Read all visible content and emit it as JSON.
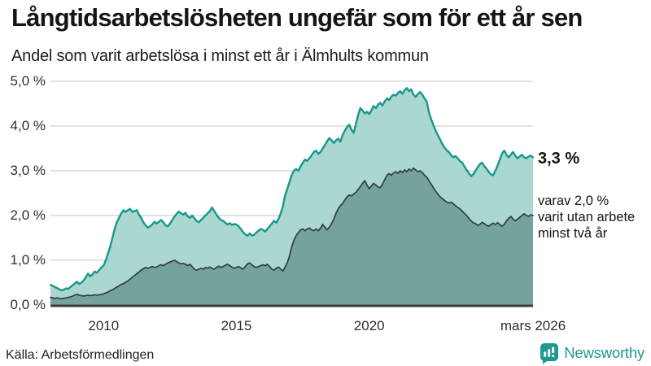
{
  "title": "Långtidsarbetslösheten ungefär som för ett år sen",
  "subtitle": "Andel som varit arbetslösa i minst ett år i Älmhults kommun",
  "source": "Källa: Arbetsförmedlingen",
  "branding": {
    "name": "Newsworthy",
    "color": "#1d9990"
  },
  "annotations": {
    "latest_value": "3,3 %",
    "secondary": "varav 2,0 %\nvarit utan arbete\nminst två år"
  },
  "colors": {
    "background": "#ffffff",
    "grid": "#d9d9d9",
    "baseline": "#3b3b3b",
    "text": "#151515",
    "tick_text": "#2e2e2e",
    "line_1yr": "#17978b",
    "fill_1yr": "#a4d4cd",
    "line_2yr": "#333d3c",
    "fill_2yr": "#6f9e97"
  },
  "chart_data": {
    "type": "area",
    "title": "Långtidsarbetslösheten ungefär som för ett år sen",
    "subtitle": "Andel som varit arbetslösa i minst ett år i Älmhults kommun",
    "unit": "%",
    "legend": "none",
    "grid": true,
    "x_range": [
      2008.0,
      2026.1667
    ],
    "y_range": [
      0,
      5
    ],
    "y_ticks": [
      {
        "v": 5,
        "label": "5,0 %"
      },
      {
        "v": 4,
        "label": "4,0 %"
      },
      {
        "v": 3,
        "label": "3,0 %"
      },
      {
        "v": 2,
        "label": "2,0 %"
      },
      {
        "v": 1,
        "label": "1,0 %"
      },
      {
        "v": 0,
        "label": "0,0 %"
      }
    ],
    "x_ticks": [
      {
        "t": 2010.0,
        "label": "2010"
      },
      {
        "t": 2015.0,
        "label": "2015"
      },
      {
        "t": 2020.0,
        "label": "2020"
      },
      {
        "t": 2026.1667,
        "label": "mars 2026"
      }
    ],
    "resolution": "monthly",
    "series": [
      {
        "id": "minst-ett-ar",
        "name": "Andel arbetslösa minst ett år",
        "start_year": 2008,
        "latest_value": 3.3,
        "line_color": "#17978b",
        "fill_color": "#a4d4cd",
        "line_width": 2.4,
        "values": [
          0.45,
          0.43,
          0.4,
          0.38,
          0.35,
          0.33,
          0.34,
          0.37,
          0.36,
          0.4,
          0.44,
          0.48,
          0.52,
          0.47,
          0.5,
          0.55,
          0.62,
          0.7,
          0.64,
          0.68,
          0.75,
          0.72,
          0.78,
          0.84,
          0.88,
          1.0,
          1.15,
          1.3,
          1.5,
          1.7,
          1.85,
          1.95,
          2.05,
          2.12,
          2.08,
          2.12,
          2.15,
          2.08,
          2.1,
          2.12,
          2.02,
          1.95,
          1.85,
          1.78,
          1.73,
          1.76,
          1.8,
          1.86,
          1.82,
          1.86,
          1.9,
          1.85,
          1.78,
          1.76,
          1.82,
          1.9,
          1.97,
          2.04,
          2.09,
          2.05,
          2.02,
          2.06,
          1.98,
          1.95,
          2.0,
          1.94,
          1.88,
          1.85,
          1.9,
          1.95,
          2.0,
          2.05,
          2.1,
          2.18,
          2.1,
          2.02,
          1.95,
          1.9,
          1.88,
          1.84,
          1.8,
          1.83,
          1.79,
          1.81,
          1.8,
          1.76,
          1.7,
          1.63,
          1.58,
          1.55,
          1.6,
          1.55,
          1.57,
          1.62,
          1.66,
          1.7,
          1.68,
          1.64,
          1.7,
          1.76,
          1.82,
          1.88,
          1.84,
          1.92,
          2.05,
          2.2,
          2.45,
          2.6,
          2.75,
          2.9,
          3.0,
          3.04,
          3.0,
          3.1,
          3.18,
          3.25,
          3.22,
          3.28,
          3.35,
          3.42,
          3.45,
          3.38,
          3.42,
          3.5,
          3.58,
          3.66,
          3.73,
          3.68,
          3.62,
          3.68,
          3.72,
          3.65,
          3.8,
          3.9,
          3.98,
          4.03,
          3.92,
          3.85,
          4.05,
          4.25,
          4.4,
          4.35,
          4.28,
          4.32,
          4.27,
          4.35,
          4.45,
          4.4,
          4.48,
          4.52,
          4.46,
          4.55,
          4.62,
          4.58,
          4.66,
          4.7,
          4.68,
          4.74,
          4.78,
          4.72,
          4.8,
          4.85,
          4.78,
          4.82,
          4.7,
          4.65,
          4.72,
          4.76,
          4.7,
          4.62,
          4.55,
          4.3,
          4.15,
          4.02,
          3.9,
          3.8,
          3.7,
          3.6,
          3.52,
          3.46,
          3.42,
          3.35,
          3.3,
          3.33,
          3.28,
          3.22,
          3.18,
          3.1,
          3.02,
          2.95,
          2.88,
          2.92,
          3.0,
          3.08,
          3.15,
          3.18,
          3.1,
          3.05,
          2.97,
          2.92,
          2.9,
          3.0,
          3.12,
          3.25,
          3.38,
          3.45,
          3.36,
          3.3,
          3.36,
          3.42,
          3.34,
          3.28,
          3.32,
          3.36,
          3.3,
          3.28,
          3.32,
          3.34,
          3.3
        ]
      },
      {
        "id": "minst-tva-ar",
        "name": "varav utan arbete minst två år",
        "start_year": 2008,
        "latest_value": 2.0,
        "line_color": "#333d3c",
        "fill_color": "#6f9e97",
        "line_width": 1.7,
        "values": [
          0.17,
          0.16,
          0.15,
          0.16,
          0.15,
          0.14,
          0.15,
          0.16,
          0.17,
          0.18,
          0.2,
          0.22,
          0.24,
          0.22,
          0.21,
          0.2,
          0.21,
          0.22,
          0.21,
          0.22,
          0.23,
          0.22,
          0.23,
          0.24,
          0.25,
          0.27,
          0.29,
          0.32,
          0.34,
          0.37,
          0.4,
          0.43,
          0.46,
          0.48,
          0.51,
          0.54,
          0.58,
          0.62,
          0.66,
          0.7,
          0.74,
          0.78,
          0.81,
          0.84,
          0.82,
          0.84,
          0.86,
          0.84,
          0.85,
          0.88,
          0.9,
          0.88,
          0.91,
          0.94,
          0.96,
          0.98,
          1.0,
          0.97,
          0.94,
          0.92,
          0.93,
          0.91,
          0.88,
          0.91,
          0.86,
          0.8,
          0.78,
          0.8,
          0.82,
          0.8,
          0.84,
          0.82,
          0.85,
          0.82,
          0.8,
          0.84,
          0.87,
          0.84,
          0.86,
          0.89,
          0.91,
          0.88,
          0.85,
          0.82,
          0.84,
          0.86,
          0.83,
          0.8,
          0.86,
          0.92,
          0.94,
          0.9,
          0.86,
          0.84,
          0.86,
          0.88,
          0.9,
          0.88,
          0.91,
          0.86,
          0.8,
          0.78,
          0.82,
          0.85,
          0.8,
          0.76,
          0.85,
          0.95,
          1.1,
          1.3,
          1.45,
          1.55,
          1.62,
          1.68,
          1.7,
          1.66,
          1.7,
          1.72,
          1.68,
          1.66,
          1.7,
          1.66,
          1.72,
          1.8,
          1.74,
          1.68,
          1.74,
          1.82,
          1.92,
          2.05,
          2.15,
          2.22,
          2.27,
          2.35,
          2.42,
          2.46,
          2.44,
          2.48,
          2.52,
          2.58,
          2.65,
          2.72,
          2.78,
          2.68,
          2.6,
          2.66,
          2.72,
          2.68,
          2.64,
          2.62,
          2.7,
          2.8,
          2.9,
          2.94,
          2.9,
          2.95,
          2.98,
          2.94,
          3.0,
          2.96,
          3.02,
          2.98,
          3.04,
          3.0,
          3.06,
          3.02,
          2.98,
          3.0,
          2.96,
          2.9,
          2.86,
          2.78,
          2.7,
          2.62,
          2.55,
          2.48,
          2.42,
          2.38,
          2.34,
          2.3,
          2.28,
          2.3,
          2.26,
          2.22,
          2.18,
          2.15,
          2.1,
          2.05,
          2.0,
          1.94,
          1.88,
          1.84,
          1.82,
          1.78,
          1.8,
          1.85,
          1.82,
          1.78,
          1.76,
          1.8,
          1.83,
          1.8,
          1.84,
          1.8,
          1.76,
          1.8,
          1.88,
          1.94,
          1.98,
          1.92,
          1.88,
          1.92,
          1.96,
          2.0,
          2.04,
          2.0,
          1.98,
          2.02,
          2.0
        ]
      }
    ]
  }
}
